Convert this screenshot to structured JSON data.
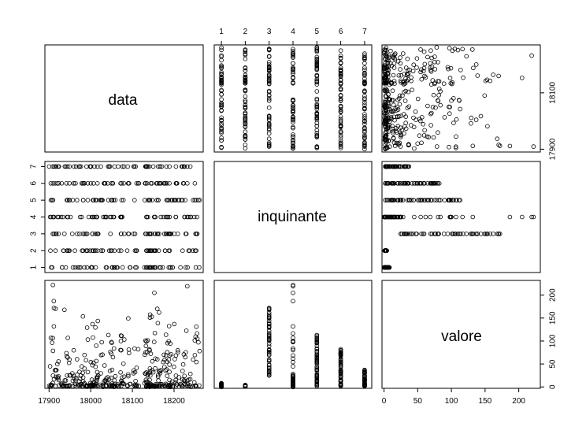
{
  "chart_data": {
    "type": "scatter",
    "variables": [
      "data",
      "inquinante",
      "valore"
    ],
    "axes": {
      "data": {
        "range": [
          17890,
          18270
        ],
        "ticks": [
          "17900",
          "18000",
          "18100",
          "18200"
        ],
        "right_ticks": [
          "17900",
          "18100"
        ]
      },
      "inquinante": {
        "range": [
          0.7,
          7.3
        ],
        "ticks": [
          "1",
          "2",
          "3",
          "4",
          "5",
          "6",
          "7"
        ]
      },
      "valore": {
        "range": [
          -3,
          232
        ],
        "ticks": [
          "0",
          "50",
          "100",
          "150",
          "200"
        ]
      }
    },
    "data_span": [
      17900,
      18262
    ],
    "pollutant_value_ranges": [
      {
        "inquinante": 1,
        "min": 0,
        "max": 8
      },
      {
        "inquinante": 2,
        "min": 1,
        "max": 4
      },
      {
        "inquinante": 3,
        "min": 25,
        "max": 172
      },
      {
        "inquinante": 4,
        "min": 0,
        "max": 222
      },
      {
        "inquinante": 5,
        "min": 2,
        "max": 113
      },
      {
        "inquinante": 6,
        "min": 2,
        "max": 82
      },
      {
        "inquinante": 7,
        "min": 2,
        "max": 37
      }
    ],
    "grid": false,
    "legend": "none"
  }
}
